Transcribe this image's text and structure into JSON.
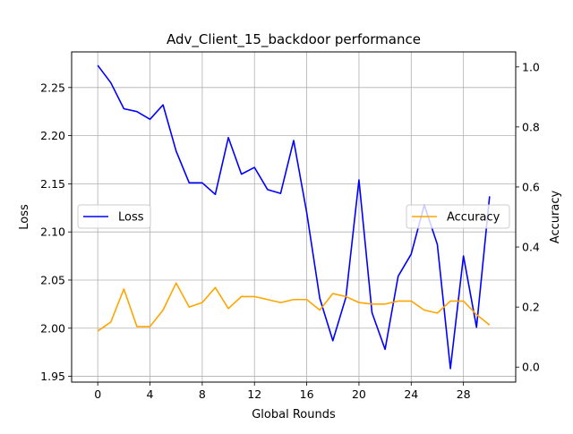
{
  "chart_data": {
    "type": "line",
    "title": "Adv_Client_15_backdoor performance",
    "xlabel": "Global Rounds",
    "ylabel": "Loss",
    "y2label": "Accuracy",
    "xlim": [
      -2,
      32
    ],
    "ylim": [
      1.944,
      2.287
    ],
    "y2lim": [
      -0.05,
      1.05
    ],
    "xticks": [
      0,
      4,
      8,
      12,
      16,
      20,
      24,
      28
    ],
    "yticks": [
      1.95,
      2.0,
      2.05,
      2.1,
      2.15,
      2.2,
      2.25
    ],
    "ytick_labels": [
      "1.95",
      "2.00",
      "2.05",
      "2.10",
      "2.15",
      "2.20",
      "2.25"
    ],
    "y2ticks": [
      0.0,
      0.2,
      0.4,
      0.6,
      0.8,
      1.0
    ],
    "y2tick_labels": [
      "0.0",
      "0.2",
      "0.4",
      "0.6",
      "0.8",
      "1.0"
    ],
    "grid": true,
    "x": [
      0,
      1,
      2,
      3,
      4,
      5,
      6,
      7,
      8,
      9,
      10,
      11,
      12,
      13,
      14,
      15,
      16,
      17,
      18,
      19,
      20,
      21,
      22,
      23,
      24,
      25,
      26,
      27,
      28,
      29,
      30
    ],
    "series": [
      {
        "name": "Loss",
        "axis": "left",
        "color": "#0000ff",
        "legend_position": "center-left",
        "values": [
          2.273,
          2.255,
          2.228,
          2.225,
          2.217,
          2.232,
          2.184,
          2.151,
          2.151,
          2.139,
          2.198,
          2.16,
          2.167,
          2.144,
          2.14,
          2.195,
          2.12,
          2.031,
          1.987,
          2.032,
          2.154,
          2.016,
          1.978,
          2.054,
          2.077,
          2.128,
          2.087,
          1.958,
          2.075,
          2.001,
          2.137
        ]
      },
      {
        "name": "Accuracy",
        "axis": "right",
        "color": "#ffa500",
        "legend_position": "center-right",
        "values": [
          0.12,
          0.15,
          0.26,
          0.135,
          0.135,
          0.19,
          0.28,
          0.2,
          0.215,
          0.265,
          0.195,
          0.235,
          0.235,
          0.225,
          0.215,
          0.225,
          0.225,
          0.19,
          0.245,
          0.235,
          0.215,
          0.21,
          0.21,
          0.22,
          0.22,
          0.19,
          0.18,
          0.22,
          0.22,
          0.175,
          0.14
        ]
      }
    ]
  }
}
